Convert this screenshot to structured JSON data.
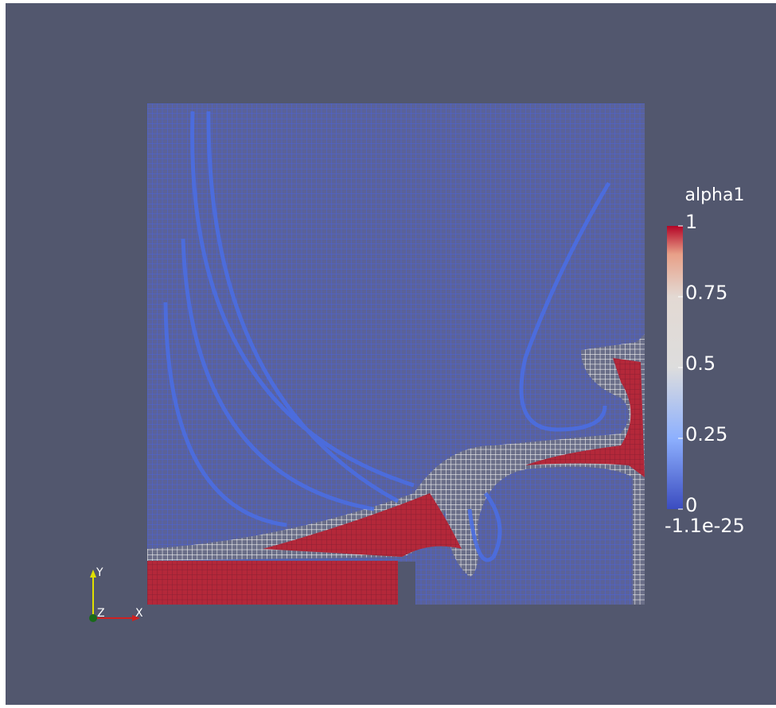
{
  "view": {
    "colorbar": {
      "title": "alpha1",
      "ticks": [
        1,
        0.75,
        0.5,
        0.25,
        0
      ],
      "min_label": "-1.1e-25"
    },
    "axes": {
      "x": "X",
      "y": "Y",
      "z": "Z"
    }
  }
}
